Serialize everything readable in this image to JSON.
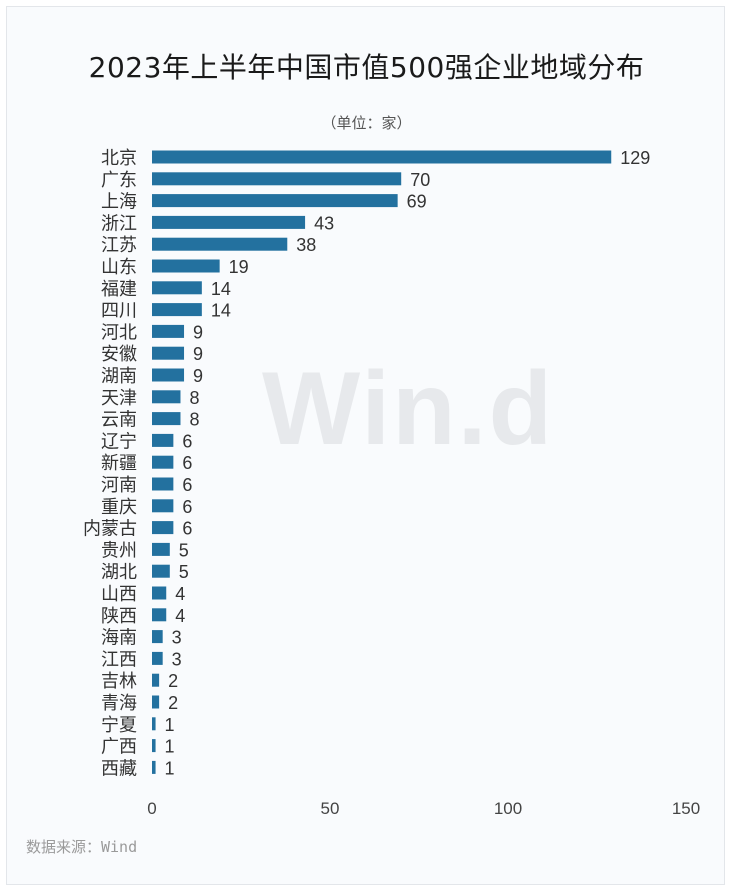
{
  "header": {
    "title": "2023年上半年中国市值500强企业地域分布",
    "unit": "（单位：家）"
  },
  "watermark": "Win.d",
  "footer": {
    "source": "数据来源：Wind"
  },
  "colors": {
    "bar": "#23719f",
    "label": "#333333",
    "tick": "#444444"
  },
  "chart_data": {
    "type": "bar",
    "orientation": "horizontal",
    "title": "2023年上半年中国市值500强企业地域分布",
    "unit": "（单位：家）",
    "categories": [
      "北京",
      "广东",
      "上海",
      "浙江",
      "江苏",
      "山东",
      "福建",
      "四川",
      "河北",
      "安徽",
      "湖南",
      "天津",
      "云南",
      "辽宁",
      "新疆",
      "河南",
      "重庆",
      "内蒙古",
      "贵州",
      "湖北",
      "山西",
      "陕西",
      "海南",
      "江西",
      "吉林",
      "青海",
      "宁夏",
      "广西",
      "西藏"
    ],
    "values": [
      129,
      70,
      69,
      43,
      38,
      19,
      14,
      14,
      9,
      9,
      9,
      8,
      8,
      6,
      6,
      6,
      6,
      6,
      5,
      5,
      4,
      4,
      3,
      3,
      2,
      2,
      1,
      1,
      1
    ],
    "xlim": [
      0,
      150
    ],
    "xticks": [
      0,
      50,
      100,
      150
    ],
    "grid": false,
    "data_labels": true
  }
}
